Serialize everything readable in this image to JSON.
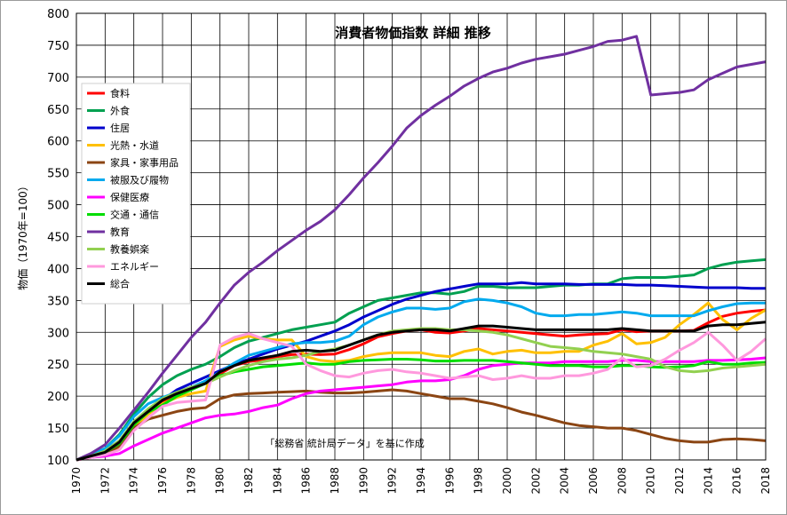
{
  "chart_data": {
    "type": "line",
    "title": "消費者物価指数 詳細 推移",
    "ylabel": "物価（1970年=100）",
    "xlabel": "",
    "annotation": "「総務省 統計局データ」を基に作成",
    "xlim": [
      1970,
      2018
    ],
    "ylim": [
      100,
      800
    ],
    "yticks": [
      100,
      150,
      200,
      250,
      300,
      350,
      400,
      450,
      500,
      550,
      600,
      650,
      700,
      750,
      800
    ],
    "xticks": [
      1970,
      1972,
      1974,
      1976,
      1978,
      1980,
      1982,
      1984,
      1986,
      1988,
      1990,
      1992,
      1994,
      1996,
      1998,
      2000,
      2002,
      2004,
      2006,
      2008,
      2010,
      2012,
      2014,
      2016,
      2018
    ],
    "grid": true,
    "legend_position": "top-left",
    "x": [
      1970,
      1971,
      1972,
      1973,
      1974,
      1975,
      1976,
      1977,
      1978,
      1979,
      1980,
      1981,
      1982,
      1983,
      1984,
      1985,
      1986,
      1987,
      1988,
      1989,
      1990,
      1991,
      1992,
      1993,
      1994,
      1995,
      1996,
      1997,
      1998,
      1999,
      2000,
      2001,
      2002,
      2003,
      2004,
      2005,
      2006,
      2007,
      2008,
      2009,
      2010,
      2011,
      2012,
      2013,
      2014,
      2015,
      2016,
      2017,
      2018
    ],
    "series": [
      {
        "name": "食料",
        "color": "#ff0000",
        "values": [
          100,
          106,
          112,
          126,
          155,
          172,
          190,
          203,
          212,
          222,
          235,
          248,
          254,
          257,
          262,
          265,
          266,
          265,
          266,
          273,
          282,
          293,
          298,
          302,
          304,
          300,
          299,
          302,
          306,
          304,
          302,
          300,
          298,
          296,
          294,
          296,
          297,
          298,
          304,
          301,
          302,
          302,
          302,
          303,
          315,
          325,
          330,
          333,
          335
        ]
      },
      {
        "name": "外食",
        "color": "#00a050",
        "values": [
          100,
          108,
          118,
          140,
          172,
          198,
          218,
          232,
          242,
          250,
          262,
          276,
          286,
          292,
          298,
          304,
          308,
          312,
          316,
          330,
          340,
          350,
          354,
          358,
          362,
          362,
          360,
          364,
          372,
          372,
          370,
          370,
          370,
          372,
          374,
          374,
          376,
          376,
          384,
          386,
          386,
          386,
          388,
          390,
          400,
          406,
          410,
          412,
          414
        ]
      },
      {
        "name": "住居",
        "color": "#0000cc",
        "values": [
          100,
          106,
          114,
          130,
          156,
          176,
          194,
          210,
          220,
          230,
          240,
          250,
          258,
          266,
          274,
          280,
          286,
          294,
          302,
          312,
          324,
          334,
          344,
          352,
          358,
          364,
          368,
          372,
          376,
          376,
          376,
          378,
          376,
          376,
          376,
          375,
          375,
          375,
          375,
          374,
          374,
          373,
          372,
          371,
          370,
          370,
          370,
          369,
          369
        ]
      },
      {
        "name": "光熱・水道",
        "color": "#ffc000",
        "values": [
          100,
          104,
          108,
          118,
          150,
          172,
          188,
          198,
          204,
          208,
          278,
          288,
          294,
          290,
          288,
          288,
          262,
          256,
          254,
          256,
          262,
          266,
          268,
          268,
          268,
          264,
          262,
          270,
          274,
          266,
          270,
          272,
          268,
          268,
          270,
          270,
          280,
          286,
          298,
          282,
          284,
          292,
          312,
          328,
          346,
          320,
          304,
          322,
          335
        ]
      },
      {
        "name": "家具・家事用品",
        "color": "#8b4513",
        "values": [
          100,
          104,
          108,
          122,
          150,
          164,
          170,
          176,
          180,
          182,
          196,
          202,
          204,
          205,
          206,
          207,
          208,
          206,
          205,
          205,
          206,
          208,
          210,
          208,
          204,
          200,
          196,
          196,
          192,
          188,
          182,
          175,
          170,
          164,
          158,
          154,
          152,
          150,
          150,
          146,
          140,
          134,
          130,
          128,
          128,
          132,
          133,
          132,
          130
        ]
      },
      {
        "name": "被服及び履物",
        "color": "#00aaee",
        "values": [
          100,
          108,
          118,
          138,
          168,
          188,
          198,
          206,
          214,
          224,
          238,
          252,
          264,
          270,
          276,
          282,
          284,
          284,
          286,
          294,
          312,
          324,
          332,
          338,
          338,
          336,
          338,
          348,
          352,
          350,
          346,
          340,
          330,
          326,
          326,
          328,
          328,
          330,
          332,
          330,
          326,
          326,
          326,
          326,
          334,
          340,
          345,
          346,
          346
        ]
      },
      {
        "name": "保健医療",
        "color": "#ff00ff",
        "values": [
          100,
          104,
          106,
          110,
          122,
          132,
          142,
          150,
          158,
          166,
          170,
          172,
          176,
          182,
          186,
          196,
          204,
          208,
          210,
          212,
          214,
          216,
          218,
          222,
          224,
          224,
          226,
          232,
          242,
          248,
          250,
          252,
          252,
          252,
          254,
          254,
          254,
          254,
          256,
          256,
          254,
          254,
          254,
          254,
          256,
          256,
          257,
          258,
          260
        ]
      },
      {
        "name": "交通・通信",
        "color": "#00dd00",
        "values": [
          100,
          106,
          112,
          126,
          155,
          175,
          186,
          200,
          210,
          220,
          232,
          238,
          242,
          246,
          248,
          250,
          252,
          250,
          250,
          254,
          256,
          257,
          258,
          258,
          257,
          255,
          255,
          256,
          256,
          256,
          254,
          252,
          250,
          248,
          248,
          248,
          246,
          246,
          248,
          248,
          246,
          245,
          246,
          248,
          254,
          250,
          250,
          252,
          253
        ]
      },
      {
        "name": "教育",
        "color": "#7030a0",
        "values": [
          100,
          110,
          124,
          150,
          178,
          206,
          236,
          264,
          292,
          316,
          346,
          374,
          394,
          410,
          428,
          444,
          460,
          474,
          492,
          516,
          542,
          566,
          592,
          620,
          640,
          656,
          670,
          686,
          698,
          708,
          714,
          722,
          728,
          732,
          736,
          742,
          748,
          756,
          758,
          764,
          672,
          674,
          676,
          680,
          696,
          706,
          716,
          720,
          724
        ]
      },
      {
        "name": "教養娯楽",
        "color": "#92d050",
        "values": [
          100,
          106,
          114,
          130,
          160,
          180,
          196,
          206,
          214,
          220,
          230,
          240,
          248,
          254,
          258,
          260,
          264,
          270,
          274,
          280,
          288,
          296,
          302,
          304,
          306,
          306,
          304,
          304,
          302,
          300,
          296,
          290,
          284,
          278,
          276,
          274,
          270,
          268,
          266,
          262,
          258,
          246,
          240,
          238,
          240,
          244,
          246,
          248,
          250
        ]
      },
      {
        "name": "エネルギー",
        "color": "#ff99dd",
        "values": [
          100,
          104,
          108,
          116,
          146,
          166,
          184,
          190,
          192,
          194,
          280,
          292,
          298,
          290,
          284,
          278,
          250,
          240,
          232,
          230,
          236,
          240,
          242,
          238,
          236,
          232,
          228,
          230,
          232,
          226,
          228,
          232,
          228,
          228,
          232,
          232,
          236,
          242,
          260,
          246,
          248,
          258,
          272,
          284,
          300,
          280,
          256,
          270,
          290
        ]
      },
      {
        "name": "総合",
        "color": "#000000",
        "values": [
          100,
          106,
          112,
          128,
          158,
          176,
          194,
          204,
          212,
          220,
          238,
          248,
          256,
          260,
          264,
          270,
          272,
          270,
          272,
          280,
          288,
          296,
          300,
          302,
          304,
          304,
          302,
          306,
          310,
          310,
          308,
          306,
          304,
          304,
          304,
          304,
          304,
          304,
          306,
          304,
          302,
          302,
          302,
          302,
          310,
          312,
          312,
          314,
          316
        ]
      }
    ]
  }
}
